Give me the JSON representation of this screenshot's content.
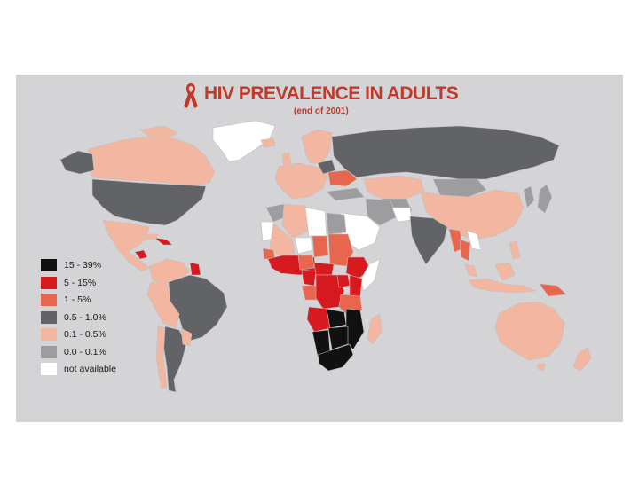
{
  "map": {
    "title": "HIV PREVALENCE IN ADULTS",
    "subtitle": "(end of 2001)",
    "legend": [
      {
        "label": "15 - 39%",
        "color": "#111111"
      },
      {
        "label": "5 - 15%",
        "color": "#d71920"
      },
      {
        "label": "1 - 5%",
        "color": "#e8664d"
      },
      {
        "label": "0.5 - 1.0%",
        "color": "#626366"
      },
      {
        "label": "0.1 - 0.5%",
        "color": "#f3b7a1"
      },
      {
        "label": "0.0 - 0.1%",
        "color": "#9d9d9f"
      },
      {
        "label": "not available",
        "color": "#ffffff"
      }
    ],
    "colors": {
      "background": "#d4d4d6",
      "ribbon": "#c0392b",
      "title": "#c0392b"
    }
  }
}
